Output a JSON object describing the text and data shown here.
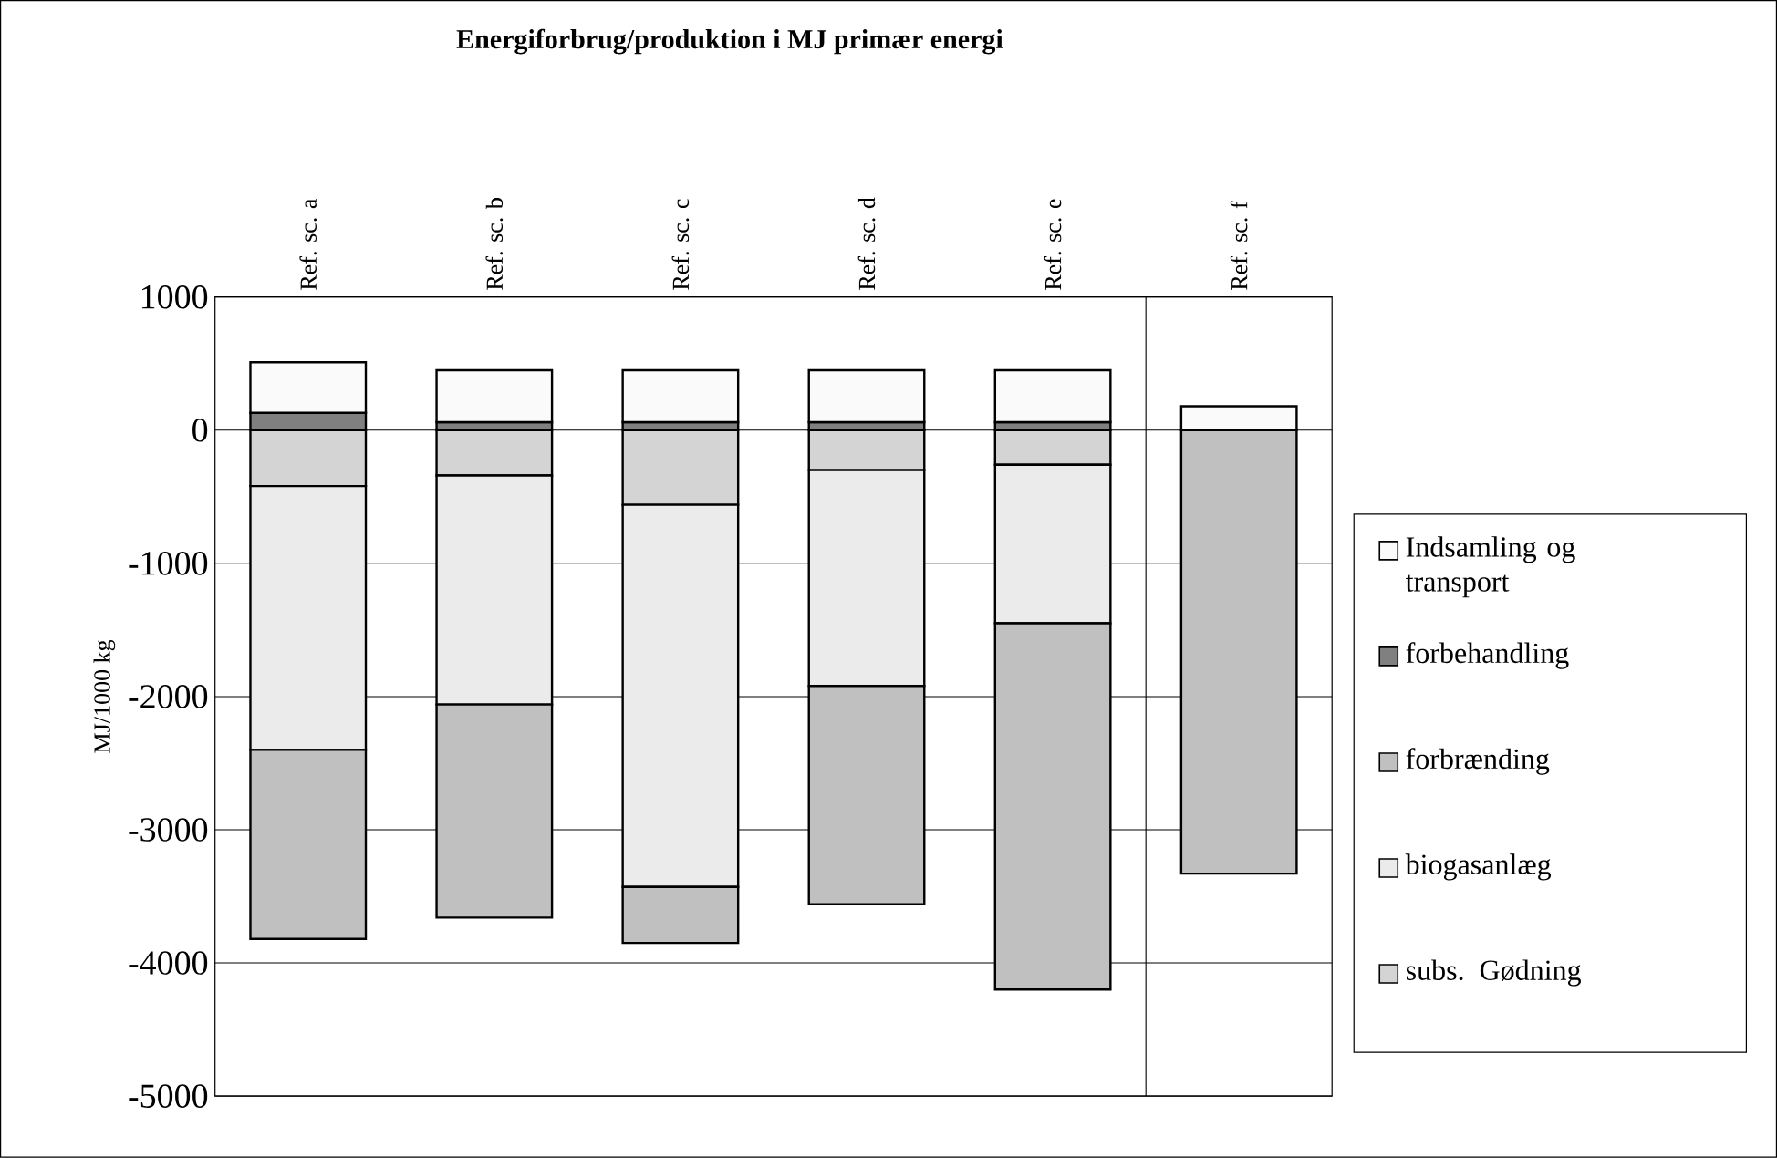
{
  "chart_data": {
    "type": "bar",
    "stacked": true,
    "title": "Energiforbrug/produktion i MJ primær energi",
    "ylabel": "MJ/1000 kg",
    "categories": [
      "Ref. sc. a",
      "Ref. sc. b",
      "Ref. sc. c",
      "Ref. sc. d",
      "Ref. sc. e",
      "Ref. sc. f"
    ],
    "series": [
      {
        "name": "subs. Gødning",
        "color": "#d4d4d4",
        "values": [
          -420,
          -340,
          -560,
          -300,
          -260,
          0
        ]
      },
      {
        "name": "biogasanlæg",
        "color": "#ebebeb",
        "values": [
          -1980,
          -1720,
          -2870,
          -1620,
          -1190,
          0
        ]
      },
      {
        "name": "forbrænding",
        "color": "#c0c0c0",
        "values": [
          -1420,
          -1600,
          -420,
          -1640,
          -2750,
          -3330
        ]
      },
      {
        "name": "forbehandling",
        "color": "#808080",
        "values": [
          130,
          60,
          60,
          60,
          60,
          0
        ]
      },
      {
        "name": "Indsamling og transport",
        "color": "#fafafa",
        "values": [
          380,
          390,
          390,
          390,
          390,
          180
        ]
      }
    ],
    "ylim": [
      -5000,
      1000
    ],
    "yticks": [
      -5000,
      -4000,
      -3000,
      -2000,
      -1000,
      0,
      1000
    ],
    "grid": "y",
    "legend": "right"
  }
}
